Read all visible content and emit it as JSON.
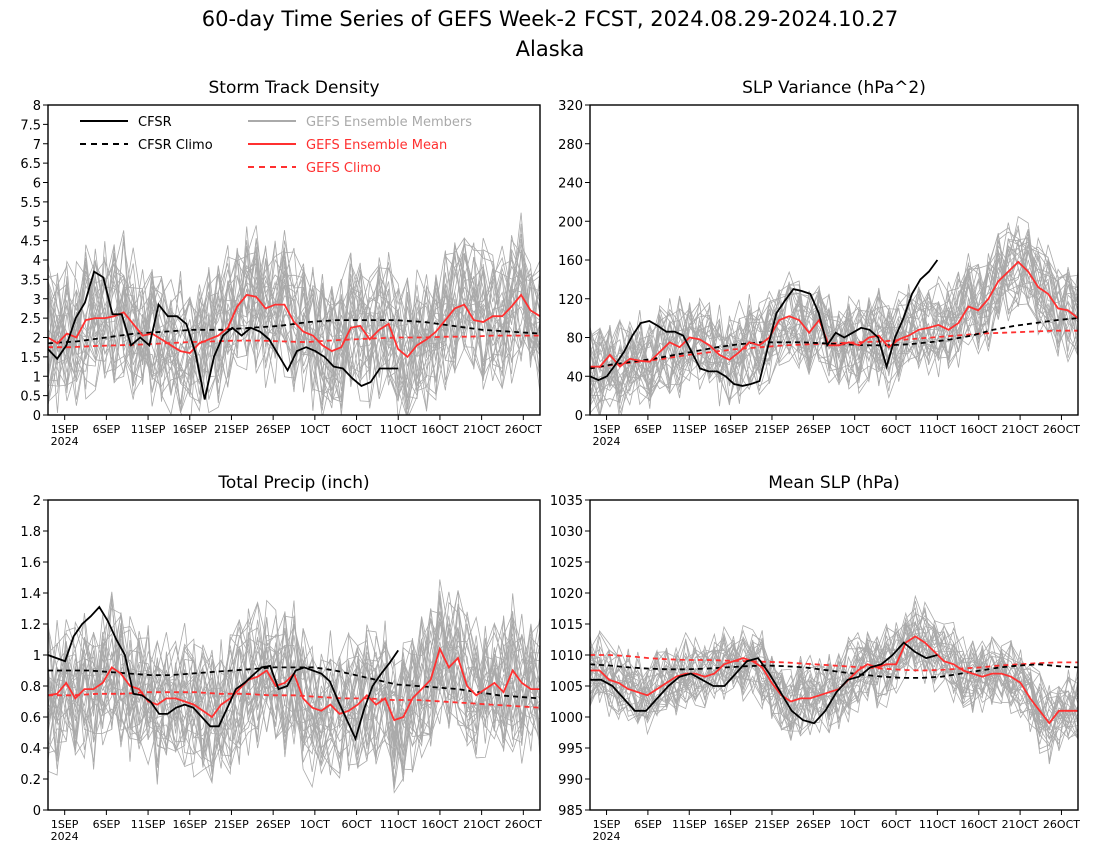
{
  "title": "60-day Time Series of GEFS Week-2 FCST, 2024.08.29-2024.10.27",
  "subtitle": "Alaska",
  "x_axis": {
    "ticks": [
      {
        "day": 3,
        "label": "1SEP",
        "sub": "2024"
      },
      {
        "day": 8,
        "label": "6SEP"
      },
      {
        "day": 13,
        "label": "11SEP"
      },
      {
        "day": 18,
        "label": "16SEP"
      },
      {
        "day": 23,
        "label": "21SEP"
      },
      {
        "day": 28,
        "label": "26SEP"
      },
      {
        "day": 33,
        "label": "1OCT"
      },
      {
        "day": 38,
        "label": "6OCT"
      },
      {
        "day": 43,
        "label": "11OCT"
      },
      {
        "day": 48,
        "label": "16OCT"
      },
      {
        "day": 53,
        "label": "21OCT"
      },
      {
        "day": 58,
        "label": "26OCT"
      }
    ],
    "range": [
      1,
      60
    ]
  },
  "legend": {
    "placement": "top-left of Storm Track Density panel",
    "entries": [
      {
        "label": "CFSR",
        "color": "#000000",
        "dash": false
      },
      {
        "label": "CFSR Climo",
        "color": "#000000",
        "dash": true
      },
      {
        "label": "GEFS Ensemble Members",
        "color": "#aaaaaa",
        "dash": false
      },
      {
        "label": "GEFS Ensemble Mean",
        "color": "#ff3030",
        "dash": false
      },
      {
        "label": "GEFS Climo",
        "color": "#ff3030",
        "dash": true
      }
    ]
  },
  "colors": {
    "cfsr": "#000000",
    "members": "#aaaaaa",
    "mean": "#ff3030"
  },
  "chart_data": [
    {
      "type": "line",
      "title": "Storm Track Density",
      "ylim": [
        0,
        8
      ],
      "yticks": [
        "0",
        "0.5",
        "1",
        "1.5",
        "2",
        "2.5",
        "3",
        "3.5",
        "4",
        "4.5",
        "5",
        "5.5",
        "6",
        "6.5",
        "7",
        "7.5",
        "8"
      ],
      "members": {
        "count": 31,
        "spread": 1.25
      },
      "series": [
        {
          "name": "CFSR",
          "values": [
            1.7,
            1.45,
            1.8,
            2.5,
            2.9,
            3.7,
            3.55,
            2.6,
            2.6,
            1.8,
            2.0,
            1.8,
            2.85,
            2.55,
            2.55,
            2.35,
            1.6,
            0.4,
            1.5,
            2.05,
            2.25,
            2.05,
            2.25,
            2.15,
            1.95,
            1.55,
            1.15,
            1.65,
            1.75,
            1.65,
            1.5,
            1.25,
            1.2,
            0.95,
            0.75,
            0.85,
            1.2,
            1.2,
            1.2
          ]
        },
        {
          "name": "CFSR Climo",
          "values": [
            1.85,
            1.9,
            2.0,
            2.1,
            2.15,
            2.2,
            2.2,
            2.25,
            2.3,
            2.4,
            2.45,
            2.45,
            2.45,
            2.4,
            2.3,
            2.2,
            2.15,
            2.1
          ]
        },
        {
          "name": "GEFS Ensemble Mean",
          "values": [
            2.0,
            1.85,
            2.1,
            2.0,
            2.45,
            2.5,
            2.5,
            2.55,
            2.65,
            2.35,
            2.05,
            2.1,
            1.95,
            1.8,
            1.65,
            1.6,
            1.85,
            1.95,
            2.05,
            2.25,
            2.8,
            3.1,
            3.05,
            2.75,
            2.85,
            2.85,
            2.4,
            2.15,
            2.05,
            1.8,
            1.65,
            1.75,
            2.25,
            2.3,
            1.95,
            2.2,
            2.35,
            1.7,
            1.5,
            1.8,
            1.95,
            2.15,
            2.45,
            2.75,
            2.85,
            2.45,
            2.4,
            2.55,
            2.55,
            2.8,
            3.1,
            2.7,
            2.55
          ]
        },
        {
          "name": "GEFS Climo",
          "values": [
            1.75,
            1.75,
            1.78,
            1.8,
            1.82,
            1.85,
            1.88,
            1.9,
            1.92,
            1.92,
            1.9,
            1.88,
            1.92,
            1.95,
            1.98,
            2.0,
            2.0,
            2.02,
            2.02,
            2.05,
            2.05,
            2.05
          ]
        }
      ]
    },
    {
      "type": "line",
      "title": "SLP Variance (hPa^2)",
      "ylim": [
        0,
        320
      ],
      "yticks": [
        "0",
        "40",
        "80",
        "120",
        "160",
        "200",
        "240",
        "280",
        "320"
      ],
      "members": {
        "count": 31,
        "spread": 32
      },
      "series": [
        {
          "name": "CFSR",
          "values": [
            40,
            36,
            40,
            52,
            65,
            82,
            95,
            97,
            92,
            86,
            86,
            82,
            65,
            48,
            45,
            45,
            40,
            32,
            30,
            32,
            35,
            70,
            105,
            118,
            130,
            128,
            125,
            105,
            72,
            85,
            80,
            85,
            90,
            88,
            80,
            50,
            80,
            100,
            125,
            140,
            148,
            160
          ]
        },
        {
          "name": "CFSR Climo",
          "values": [
            48,
            52,
            55,
            58,
            62,
            66,
            70,
            73,
            75,
            75,
            75,
            74,
            73,
            72,
            72,
            73,
            75,
            78,
            82,
            88,
            92,
            95,
            98,
            100
          ]
        },
        {
          "name": "GEFS Ensemble Mean",
          "values": [
            50,
            50,
            62,
            50,
            58,
            56,
            55,
            65,
            75,
            70,
            80,
            78,
            72,
            62,
            57,
            65,
            75,
            72,
            80,
            98,
            102,
            98,
            85,
            98,
            72,
            72,
            75,
            72,
            80,
            82,
            70,
            78,
            82,
            88,
            90,
            93,
            88,
            95,
            112,
            108,
            120,
            138,
            148,
            158,
            148,
            132,
            125,
            110,
            108,
            100
          ]
        },
        {
          "name": "GEFS Climo",
          "values": [
            48,
            52,
            55,
            58,
            62,
            65,
            68,
            70,
            72,
            73,
            74,
            75,
            76,
            78,
            80,
            82,
            84,
            85,
            86,
            87,
            87
          ]
        }
      ]
    },
    {
      "type": "line",
      "title": "Total Precip (inch)",
      "ylim": [
        0,
        2
      ],
      "yticks": [
        "0",
        "0.2",
        "0.4",
        "0.6",
        "0.8",
        "1",
        "1.2",
        "1.4",
        "1.6",
        "1.8",
        "2"
      ],
      "members": {
        "count": 31,
        "spread": 0.3
      },
      "series": [
        {
          "name": "CFSR",
          "values": [
            1.0,
            0.98,
            0.96,
            1.12,
            1.2,
            1.25,
            1.31,
            1.22,
            1.1,
            1.0,
            0.75,
            0.74,
            0.7,
            0.62,
            0.62,
            0.66,
            0.68,
            0.66,
            0.6,
            0.54,
            0.54,
            0.66,
            0.78,
            0.82,
            0.87,
            0.92,
            0.93,
            0.78,
            0.8,
            0.9,
            0.92,
            0.9,
            0.88,
            0.83,
            0.7,
            0.58,
            0.46,
            0.65,
            0.8,
            0.88,
            0.95,
            1.03
          ]
        },
        {
          "name": "CFSR Climo",
          "values": [
            0.9,
            0.9,
            0.9,
            0.89,
            0.88,
            0.87,
            0.87,
            0.88,
            0.89,
            0.9,
            0.91,
            0.92,
            0.92,
            0.92,
            0.9,
            0.87,
            0.84,
            0.81,
            0.8,
            0.79,
            0.78,
            0.76,
            0.74,
            0.73,
            0.72
          ]
        },
        {
          "name": "GEFS Ensemble Mean",
          "values": [
            0.74,
            0.75,
            0.82,
            0.72,
            0.78,
            0.78,
            0.82,
            0.92,
            0.88,
            0.8,
            0.78,
            0.7,
            0.68,
            0.72,
            0.72,
            0.7,
            0.68,
            0.64,
            0.6,
            0.68,
            0.72,
            0.78,
            0.84,
            0.86,
            0.9,
            0.8,
            0.82,
            0.88,
            0.72,
            0.66,
            0.64,
            0.68,
            0.62,
            0.64,
            0.68,
            0.74,
            0.68,
            0.72,
            0.58,
            0.6,
            0.72,
            0.78,
            0.84,
            1.04,
            0.92,
            0.98,
            0.8,
            0.74,
            0.78,
            0.82,
            0.76,
            0.9,
            0.82,
            0.78,
            0.78
          ]
        },
        {
          "name": "GEFS Climo",
          "values": [
            0.74,
            0.74,
            0.75,
            0.75,
            0.76,
            0.76,
            0.76,
            0.75,
            0.75,
            0.74,
            0.74,
            0.73,
            0.72,
            0.72,
            0.71,
            0.71,
            0.7,
            0.69,
            0.68,
            0.67,
            0.66
          ]
        }
      ]
    },
    {
      "type": "line",
      "title": "Mean SLP (hPa)",
      "ylim": [
        985,
        1035
      ],
      "yticks": [
        "985",
        "990",
        "995",
        "1000",
        "1005",
        "1010",
        "1015",
        "1020",
        "1025",
        "1030",
        "1035"
      ],
      "members": {
        "count": 31,
        "spread": 4
      },
      "series": [
        {
          "name": "CFSR",
          "values": [
            1006,
            1006,
            1005,
            1003,
            1001,
            1001,
            1003,
            1005,
            1006.5,
            1007,
            1006,
            1005,
            1005,
            1007,
            1009,
            1009.5,
            1007,
            1004,
            1001,
            999.5,
            999,
            1001,
            1004,
            1006,
            1006.5,
            1008,
            1008.5,
            1010,
            1012,
            1010.5,
            1009.5,
            1010
          ]
        },
        {
          "name": "CFSR Climo",
          "values": [
            1008.5,
            1008.3,
            1008,
            1007.8,
            1007.7,
            1007.7,
            1007.8,
            1008,
            1008.2,
            1008.3,
            1008.2,
            1008,
            1007.6,
            1007.2,
            1006.8,
            1006.5,
            1006.3,
            1006.3,
            1006.5,
            1007,
            1007.5,
            1008,
            1008.3,
            1008.5,
            1008.2,
            1008
          ]
        },
        {
          "name": "GEFS Ensemble Mean",
          "values": [
            1007.5,
            1007.5,
            1006,
            1005.5,
            1004.5,
            1004,
            1003.5,
            1004.5,
            1005.5,
            1006.5,
            1007,
            1007,
            1006.5,
            1007,
            1008.5,
            1009,
            1009.5,
            1009,
            1008,
            1005.5,
            1003.5,
            1002.5,
            1003,
            1003,
            1003.5,
            1004,
            1004.5,
            1006,
            1007.5,
            1008.5,
            1008,
            1008.5,
            1008.5,
            1012,
            1013,
            1012,
            1010.5,
            1009,
            1008.5,
            1007.5,
            1007,
            1006.5,
            1007,
            1007,
            1006.5,
            1005.5,
            1003,
            1001,
            999,
            1001,
            1001,
            1001
          ]
        },
        {
          "name": "GEFS Climo",
          "values": [
            1010,
            1010,
            1009.8,
            1009.5,
            1009.3,
            1009.2,
            1009.2,
            1009.1,
            1009,
            1008.9,
            1008.8,
            1008.6,
            1008.4,
            1008.2,
            1008,
            1007.8,
            1007.6,
            1007.5,
            1007.6,
            1007.8,
            1008,
            1008.3,
            1008.5,
            1008.7,
            1008.8,
            1008.8
          ]
        }
      ]
    }
  ]
}
